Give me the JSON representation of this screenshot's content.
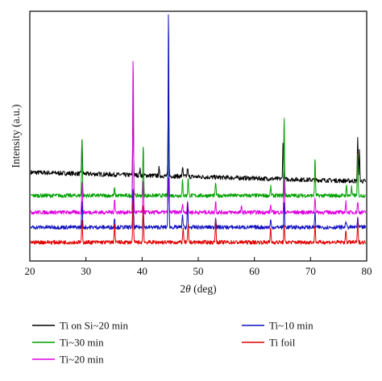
{
  "chart_data": {
    "type": "line",
    "ylabel": "Intensity (a.u.)",
    "xlabel_prefix": "2",
    "xlabel_symbol": "θ",
    "xlabel_suffix": " (deg)",
    "xlim": [
      20,
      80
    ],
    "x_ticks": [
      20,
      30,
      40,
      50,
      60,
      70,
      80
    ],
    "ylim": [
      0,
      10
    ],
    "grid": false,
    "legend_position": "below",
    "series": [
      {
        "name": "Ti on Si~20 min",
        "color": "#000000",
        "baseline": 3.55,
        "slope": -0.006,
        "noise": 0.09,
        "peaks": [
          [
            29.3,
            1.35
          ],
          [
            38.4,
            2.65
          ],
          [
            39.6,
            0.25
          ],
          [
            43.0,
            0.3
          ],
          [
            44.7,
            4.0
          ],
          [
            47.2,
            0.4
          ],
          [
            48.1,
            0.35
          ],
          [
            65.1,
            1.45
          ],
          [
            78.4,
            1.7
          ],
          [
            78.7,
            1.2
          ]
        ]
      },
      {
        "name": "Ti~30 min",
        "color": "#00a000",
        "baseline": 2.62,
        "slope": 0,
        "noise": 0.08,
        "peaks": [
          [
            29.3,
            2.4
          ],
          [
            35.1,
            0.3
          ],
          [
            38.4,
            5.3
          ],
          [
            40.2,
            2.1
          ],
          [
            44.7,
            3.2
          ],
          [
            47.2,
            0.6
          ],
          [
            48.2,
            0.75
          ],
          [
            53.1,
            0.55
          ],
          [
            62.9,
            0.35
          ],
          [
            65.3,
            3.2
          ],
          [
            70.8,
            1.55
          ],
          [
            76.4,
            0.4
          ],
          [
            77.3,
            0.35
          ],
          [
            78.4,
            1.6
          ]
        ]
      },
      {
        "name": "Ti~20 min",
        "color": "#e000e0",
        "baseline": 1.95,
        "slope": 0,
        "noise": 0.08,
        "peaks": [
          [
            29.3,
            1.2
          ],
          [
            35.1,
            0.55
          ],
          [
            38.4,
            6.35
          ],
          [
            40.2,
            1.2
          ],
          [
            44.7,
            1.5
          ],
          [
            47.2,
            0.4
          ],
          [
            48.1,
            0.5
          ],
          [
            53.1,
            0.45
          ],
          [
            57.7,
            0.2
          ],
          [
            62.9,
            0.3
          ],
          [
            65.3,
            1.3
          ],
          [
            70.8,
            0.65
          ],
          [
            76.3,
            0.4
          ],
          [
            78.4,
            0.45
          ]
        ]
      },
      {
        "name": "Ti~10 min",
        "color": "#1010c0",
        "baseline": 1.35,
        "slope": 0,
        "noise": 0.08,
        "peaks": [
          [
            29.3,
            1.0
          ],
          [
            35.1,
            0.4
          ],
          [
            38.4,
            1.6
          ],
          [
            40.2,
            0.8
          ],
          [
            44.7,
            8.8
          ],
          [
            47.2,
            0.55
          ],
          [
            48.1,
            0.9
          ],
          [
            53.1,
            0.45
          ],
          [
            62.9,
            0.3
          ],
          [
            65.3,
            1.0
          ],
          [
            70.8,
            0.6
          ],
          [
            76.3,
            0.3
          ],
          [
            78.4,
            0.4
          ]
        ]
      },
      {
        "name": "Ti foil",
        "color": "#e00000",
        "baseline": 0.75,
        "slope": 0,
        "noise": 0.08,
        "peaks": [
          [
            29.3,
            0.9
          ],
          [
            35.1,
            0.8
          ],
          [
            38.4,
            1.7
          ],
          [
            40.2,
            1.55
          ],
          [
            47.3,
            0.6
          ],
          [
            48.2,
            0.7
          ],
          [
            53.1,
            0.95
          ],
          [
            62.9,
            0.6
          ],
          [
            65.3,
            0.7
          ],
          [
            70.8,
            0.75
          ],
          [
            76.3,
            0.5
          ],
          [
            78.4,
            0.8
          ]
        ]
      }
    ]
  }
}
